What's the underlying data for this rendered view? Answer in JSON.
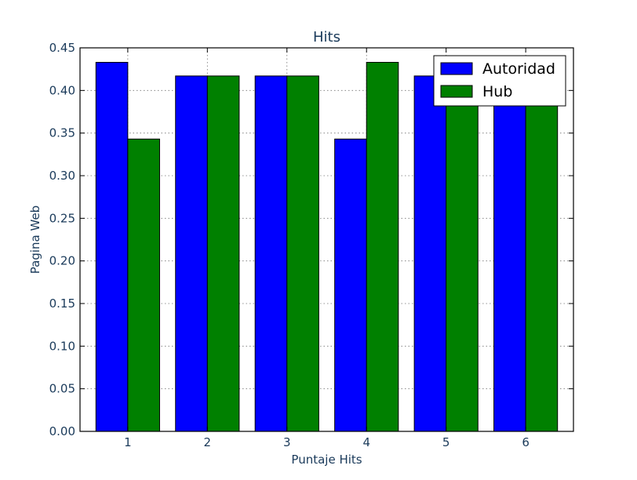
{
  "chart_data": {
    "type": "bar",
    "title": "Hits",
    "xlabel": "Puntaje Hits",
    "ylabel": "Pagina Web",
    "categories": [
      "1",
      "2",
      "3",
      "4",
      "5",
      "6"
    ],
    "series": [
      {
        "name": "Autoridad",
        "color": "#0000ff",
        "values": [
          0.433,
          0.417,
          0.417,
          0.343,
          0.417,
          0.417
        ]
      },
      {
        "name": "Hub",
        "color": "#008000",
        "values": [
          0.343,
          0.417,
          0.417,
          0.433,
          0.417,
          0.417
        ]
      }
    ],
    "ylim": [
      0,
      0.45
    ],
    "yticks": [
      "0.00",
      "0.05",
      "0.10",
      "0.15",
      "0.20",
      "0.25",
      "0.30",
      "0.35",
      "0.40",
      "0.45"
    ],
    "grid": true,
    "legend_position": "top-right"
  }
}
